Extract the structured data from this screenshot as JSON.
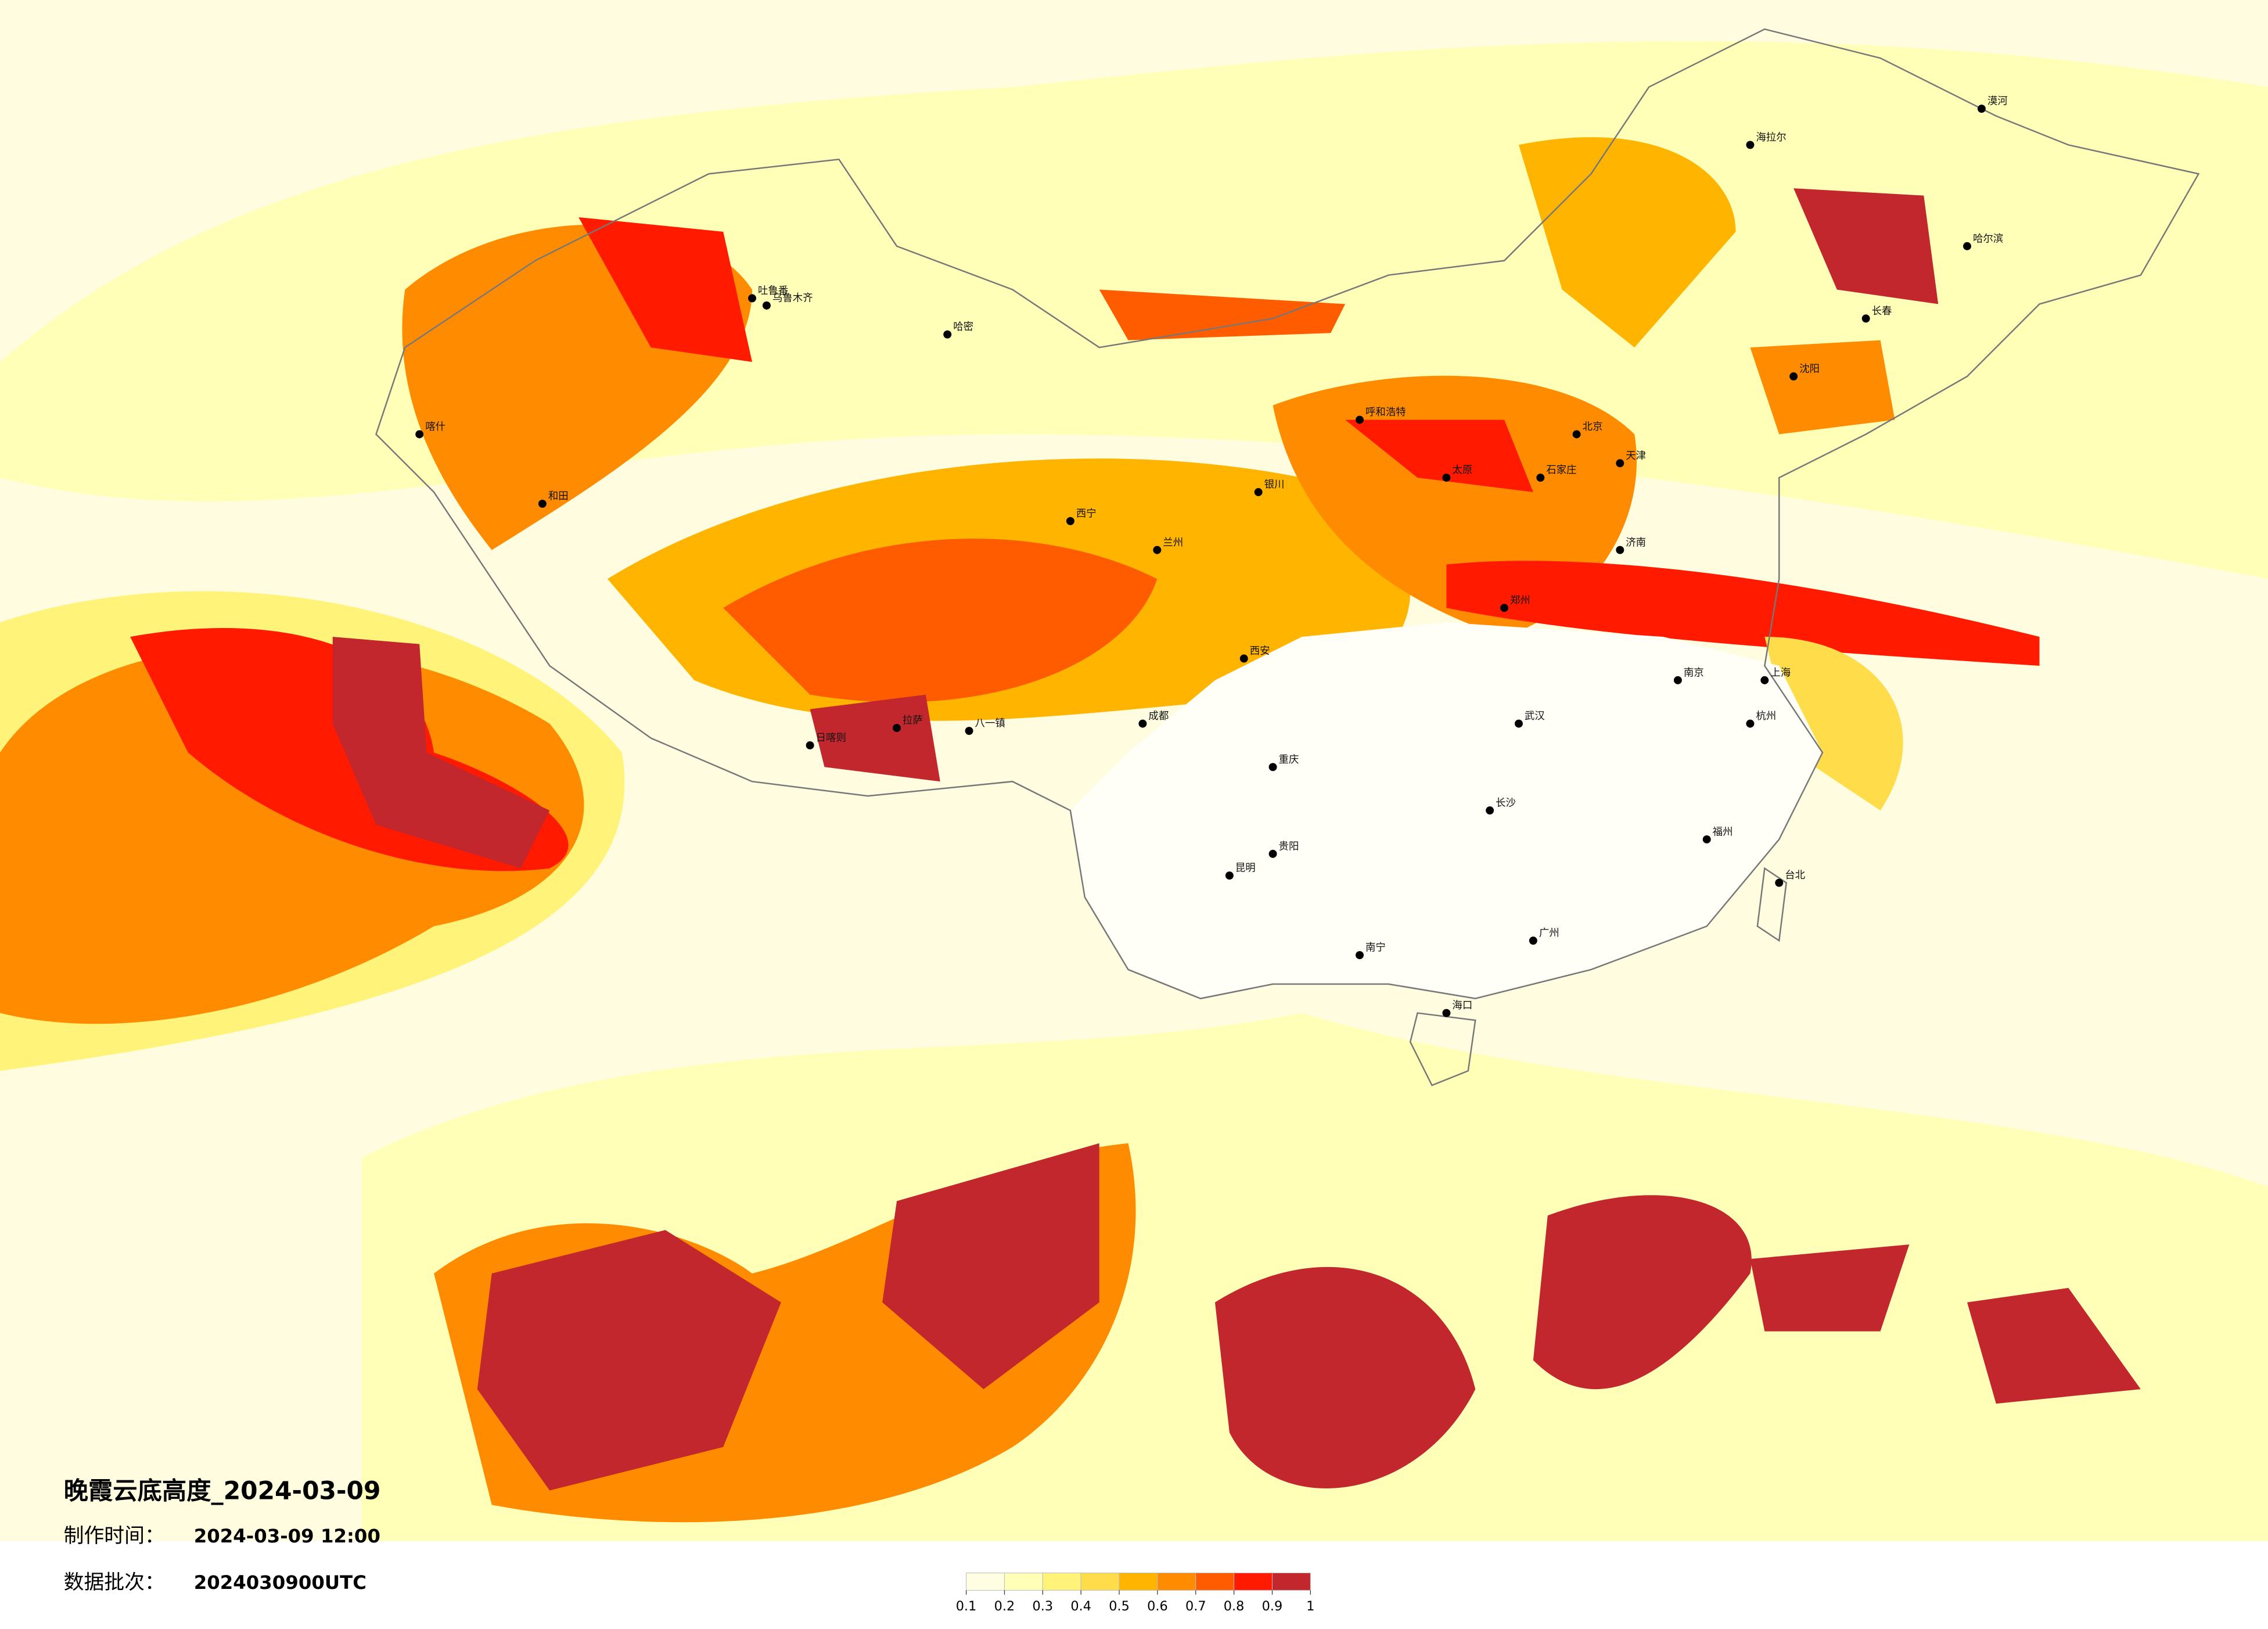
{
  "header": {
    "title": "晚霞云底高度_2024-03-09",
    "made_label": "制作时间：",
    "made_time": "2024-03-09 12:00",
    "batch_label": "数据批次：",
    "batch": "2024030900UTC"
  },
  "colorbar": {
    "ticks": [
      0.1,
      0.2,
      0.3,
      0.4,
      0.5,
      0.6,
      0.7,
      0.8,
      0.9,
      1
    ],
    "colors": [
      "#fffde2",
      "#ffffb8",
      "#fff37a",
      "#ffdc4a",
      "#ffb400",
      "#ff8c00",
      "#ff5c00",
      "#ff1a00",
      "#c1272d"
    ]
  },
  "cities": [
    "乌鲁木齐",
    "吐鲁番",
    "哈密",
    "喀什",
    "和田",
    "拉萨",
    "日喀则",
    "八一镇",
    "西宁",
    "兰州",
    "银川",
    "呼和浩特",
    "西安",
    "成都",
    "重庆",
    "贵阳",
    "昆明",
    "南宁",
    "广州",
    "长沙",
    "武汉",
    "南京",
    "上海",
    "杭州",
    "福州",
    "台北",
    "北京",
    "天津",
    "石家庄",
    "太原",
    "济南",
    "郑州",
    "沈阳",
    "长春",
    "哈尔滨",
    "海口",
    "海拉尔",
    "漠河"
  ]
}
